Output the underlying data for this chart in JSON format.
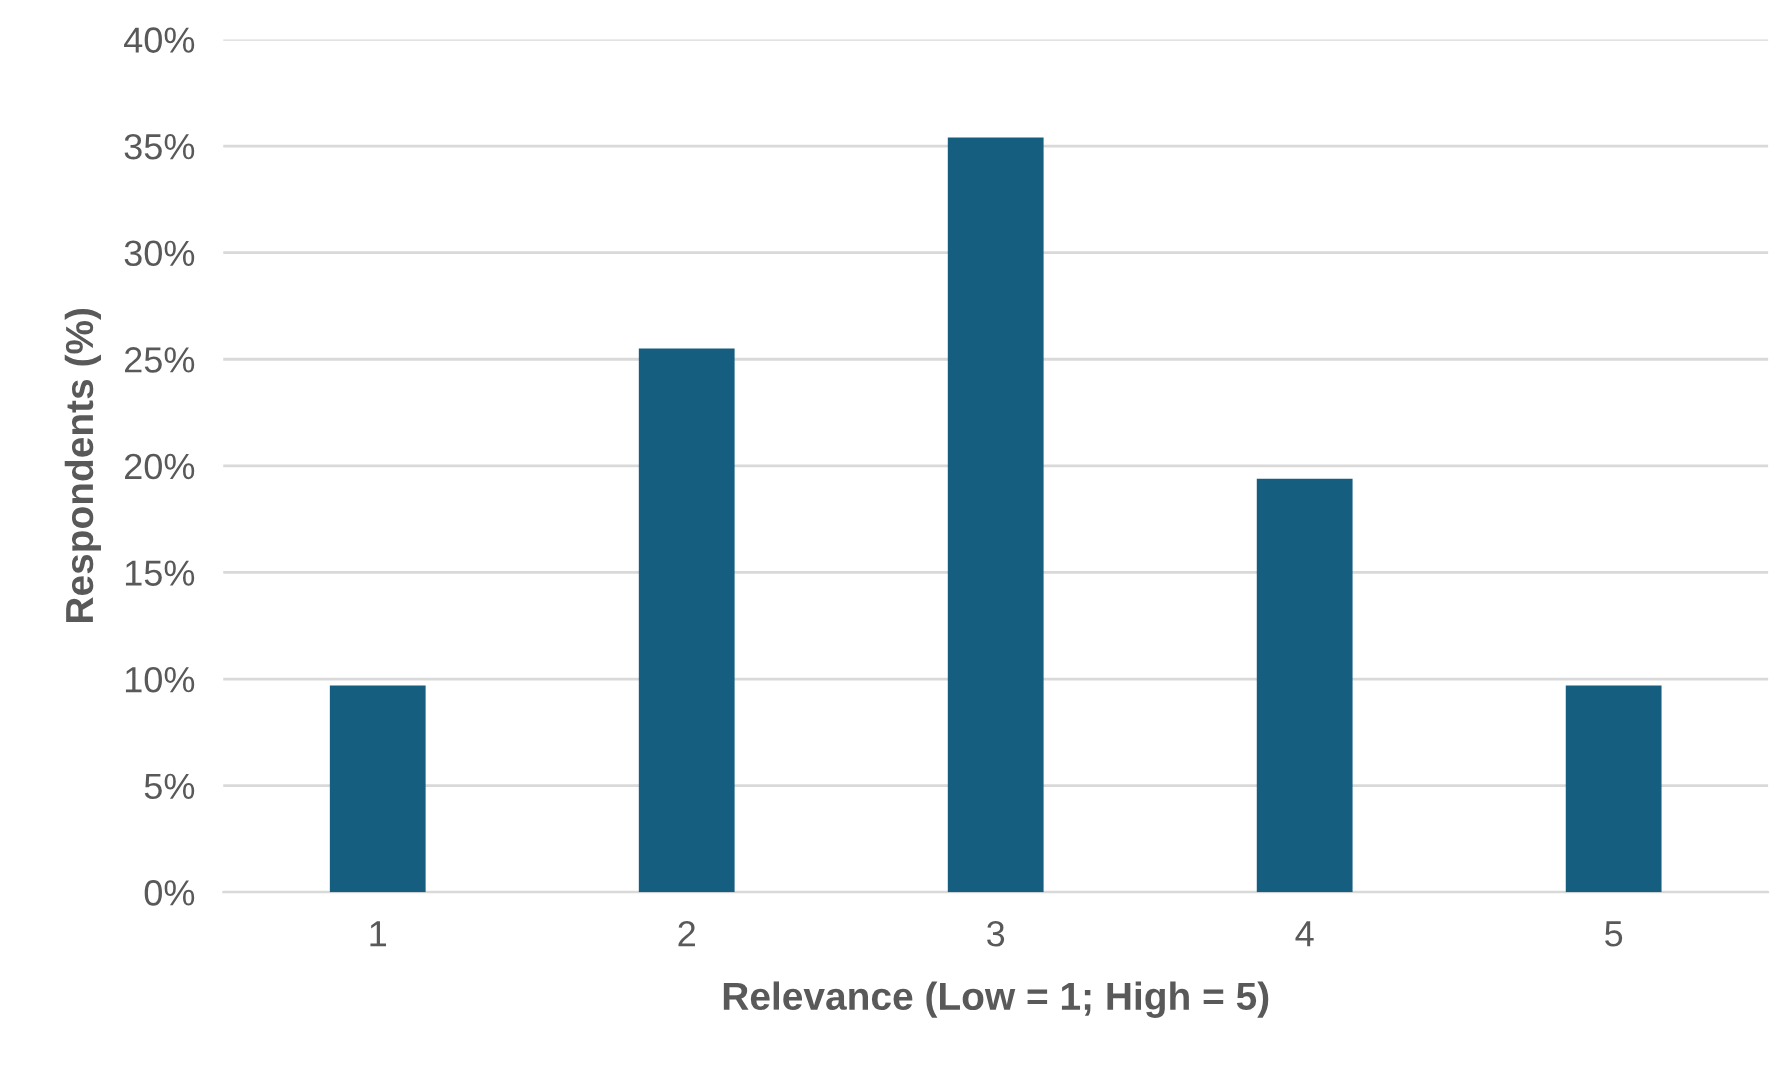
{
  "chart_data": {
    "type": "bar",
    "xlabel": "Relevance (Low = 1; High = 5)",
    "ylabel": "Respondents (%)",
    "categories": [
      "1",
      "2",
      "3",
      "4",
      "5"
    ],
    "values": [
      9.7,
      25.5,
      35.4,
      19.4,
      9.7
    ],
    "color": "#165e80",
    "ylim": [
      0,
      40
    ],
    "yticks": [
      {
        "value": 0,
        "label": "0%"
      },
      {
        "value": 5,
        "label": "5%"
      },
      {
        "value": 10,
        "label": "10%"
      },
      {
        "value": 15,
        "label": "15%"
      },
      {
        "value": 20,
        "label": "20%"
      },
      {
        "value": 25,
        "label": "25%"
      },
      {
        "value": 30,
        "label": "30%"
      },
      {
        "value": 35,
        "label": "35%"
      },
      {
        "value": 40,
        "label": "40%"
      }
    ],
    "grid": "y",
    "legend": false
  }
}
